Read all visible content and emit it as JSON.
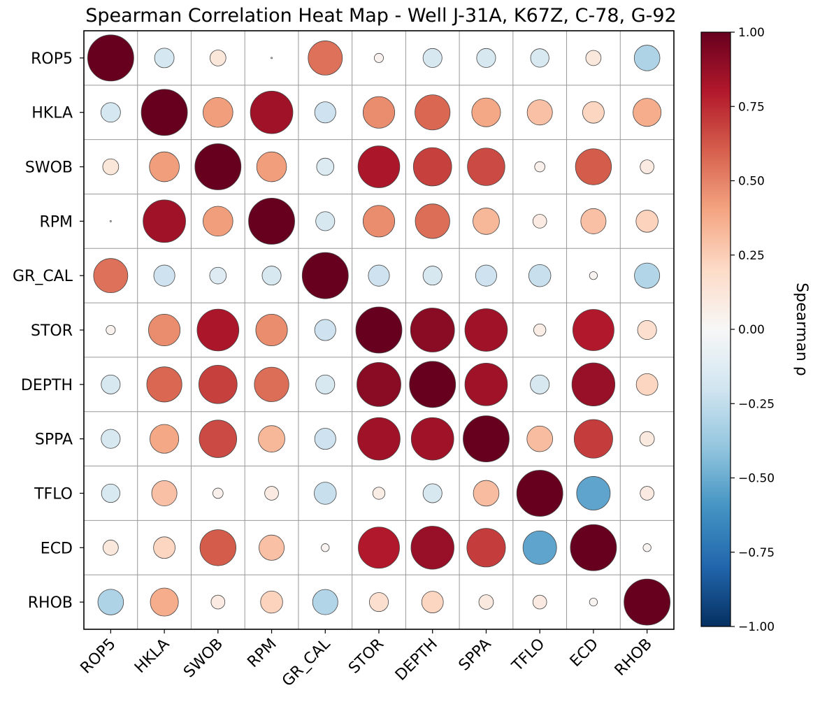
{
  "chart_data": {
    "type": "heatmap",
    "subtype": "correlation-bubble-matrix",
    "title": "Spearman Correlation Heat Map - Well J-31A, K67Z, C-78, G-92",
    "variables": [
      "ROP5",
      "HKLA",
      "SWOB",
      "RPM",
      "GR_CAL",
      "STOR",
      "DEPTH",
      "SPPA",
      "TFLO",
      "ECD",
      "RHOB"
    ],
    "matrix": [
      [
        1.0,
        -0.18,
        0.12,
        0.0,
        0.55,
        0.04,
        -0.17,
        -0.17,
        -0.16,
        0.11,
        -0.31
      ],
      [
        -0.18,
        1.0,
        0.42,
        0.85,
        -0.21,
        0.47,
        0.58,
        0.39,
        0.3,
        0.22,
        0.37
      ],
      [
        0.12,
        0.42,
        1.0,
        0.42,
        -0.14,
        0.82,
        0.69,
        0.66,
        0.05,
        0.61,
        0.09
      ],
      [
        0.0,
        0.85,
        0.42,
        1.0,
        -0.17,
        0.47,
        0.56,
        0.33,
        0.09,
        0.3,
        0.23
      ],
      [
        0.55,
        -0.21,
        -0.13,
        -0.17,
        1.0,
        -0.21,
        -0.17,
        -0.21,
        -0.23,
        0.03,
        -0.3
      ],
      [
        0.04,
        0.47,
        0.82,
        0.47,
        -0.21,
        1.0,
        0.91,
        0.85,
        0.07,
        0.8,
        0.17
      ],
      [
        -0.17,
        0.58,
        0.69,
        0.56,
        -0.17,
        0.91,
        1.0,
        0.85,
        -0.17,
        0.87,
        0.22
      ],
      [
        -0.17,
        0.39,
        0.66,
        0.33,
        -0.21,
        0.85,
        0.85,
        1.0,
        0.31,
        0.7,
        0.1
      ],
      [
        -0.16,
        0.3,
        0.05,
        0.09,
        -0.23,
        0.07,
        -0.17,
        0.31,
        1.0,
        -0.53,
        0.09
      ],
      [
        0.11,
        0.22,
        0.61,
        0.3,
        0.03,
        0.8,
        0.87,
        0.7,
        -0.53,
        1.0,
        0.03
      ],
      [
        -0.31,
        0.37,
        0.09,
        0.23,
        -0.3,
        0.17,
        0.22,
        0.1,
        0.09,
        0.03,
        1.0
      ]
    ],
    "colorbar": {
      "label": "Spearman ρ",
      "range": [
        -1.0,
        1.0
      ],
      "ticks": [
        1.0,
        0.75,
        0.5,
        0.25,
        0.0,
        -0.25,
        -0.5,
        -0.75,
        -1.0
      ],
      "tick_labels": [
        "1.00",
        "0.75",
        "0.50",
        "0.25",
        "0.00",
        "−0.25",
        "−0.50",
        "−0.75",
        "−1.00"
      ],
      "colormap": "RdBu_r",
      "stops": [
        "#053061",
        "#2166ac",
        "#4393c3",
        "#92c5de",
        "#d1e5f0",
        "#f7f7f7",
        "#fddbc7",
        "#f4a582",
        "#d6604d",
        "#b2182b",
        "#67001f"
      ]
    },
    "size_encoding": "abs(rho)",
    "grid": true,
    "legend": "none"
  }
}
